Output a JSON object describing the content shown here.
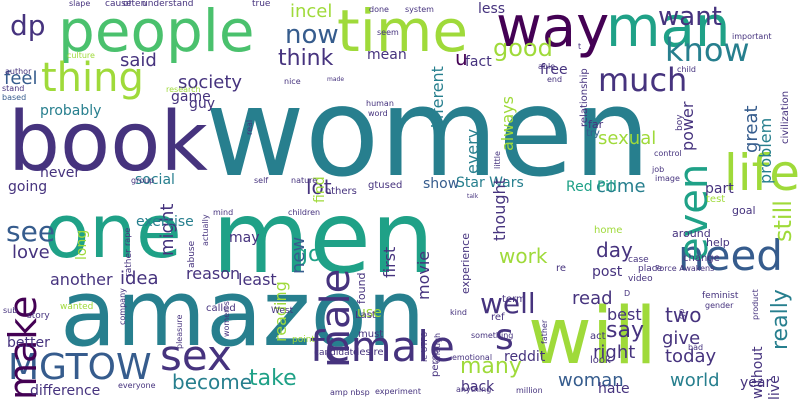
{
  "cloud": {
    "palette": {
      "purple": "#440154",
      "indigo": "#46337e",
      "blue": "#365c8d",
      "teal": "#277f8e",
      "green": "#1fa187",
      "lgreen": "#4ac16d",
      "lime": "#9fda3a",
      "yellow": "#fde725"
    },
    "words": [
      {
        "text": "women",
        "color": "teal",
        "rot": 0
      },
      {
        "text": "one",
        "color": "green",
        "rot": 0
      },
      {
        "text": "men",
        "color": "green",
        "rot": 0
      },
      {
        "text": "amazon",
        "color": "teal",
        "rot": 0
      },
      {
        "text": "book",
        "color": "indigo",
        "rot": 0
      },
      {
        "text": "will",
        "color": "lime",
        "rot": 0
      },
      {
        "text": "people",
        "color": "lgreen",
        "rot": 0
      },
      {
        "text": "way",
        "color": "purple",
        "rot": 0
      },
      {
        "text": "man",
        "color": "green",
        "rot": 0
      },
      {
        "text": "time",
        "color": "lime",
        "rot": 0
      },
      {
        "text": "life",
        "color": "lime",
        "rot": 0
      },
      {
        "text": "thing",
        "color": "lime",
        "rot": 0
      },
      {
        "text": "female",
        "color": "indigo",
        "rot": 0
      },
      {
        "text": "MGTOW",
        "color": "blue",
        "rot": 0
      },
      {
        "text": "sex",
        "color": "indigo",
        "rot": 0
      },
      {
        "text": "need",
        "color": "blue",
        "rot": 0
      },
      {
        "text": "make",
        "color": "purple",
        "rot": 270
      },
      {
        "text": "male",
        "color": "indigo",
        "rot": 270
      },
      {
        "text": "even",
        "color": "green",
        "rot": 270
      },
      {
        "text": "much",
        "color": "indigo",
        "rot": 0
      },
      {
        "text": "know",
        "color": "teal",
        "rot": 0
      },
      {
        "text": "s",
        "color": "indigo",
        "rot": 0
      },
      {
        "text": "dp",
        "color": "indigo",
        "rot": 0
      },
      {
        "text": "want",
        "color": "indigo",
        "rot": 0
      },
      {
        "text": "now",
        "color": "blue",
        "rot": 0
      },
      {
        "text": "think",
        "color": "indigo",
        "rot": 0
      },
      {
        "text": "good",
        "color": "lime",
        "rot": 0
      },
      {
        "text": "well",
        "color": "indigo",
        "rot": 0
      },
      {
        "text": "take",
        "color": "green",
        "rot": 0
      },
      {
        "text": "become",
        "color": "teal",
        "rot": 0
      },
      {
        "text": "see",
        "color": "blue",
        "rot": 0
      },
      {
        "text": "many",
        "color": "lime",
        "rot": 0
      },
      {
        "text": "still",
        "color": "lime",
        "rot": 270
      },
      {
        "text": "really",
        "color": "teal",
        "rot": 270
      },
      {
        "text": "say",
        "color": "indigo",
        "rot": 0
      },
      {
        "text": "day",
        "color": "indigo",
        "rot": 0
      },
      {
        "text": "work",
        "color": "lime",
        "rot": 0
      },
      {
        "text": "come",
        "color": "teal",
        "rot": 0
      },
      {
        "text": "society",
        "color": "indigo",
        "rot": 0
      },
      {
        "text": "feel",
        "color": "blue",
        "rot": 0
      },
      {
        "text": "said",
        "color": "indigo",
        "rot": 0
      },
      {
        "text": "u",
        "color": "purple",
        "rot": 0
      },
      {
        "text": "go",
        "color": "green",
        "rot": 0
      },
      {
        "text": "lot",
        "color": "indigo",
        "rot": 0
      },
      {
        "text": "might",
        "color": "indigo",
        "rot": 270
      },
      {
        "text": "new",
        "color": "blue",
        "rot": 270
      },
      {
        "text": "two",
        "color": "indigo",
        "rot": 0
      },
      {
        "text": "give",
        "color": "indigo",
        "rot": 0
      },
      {
        "text": "right",
        "color": "indigo",
        "rot": 0
      },
      {
        "text": "woman",
        "color": "blue",
        "rot": 0
      },
      {
        "text": "world",
        "color": "teal",
        "rot": 0
      },
      {
        "text": "today",
        "color": "indigo",
        "rot": 0
      },
      {
        "text": "read",
        "color": "indigo",
        "rot": 0
      },
      {
        "text": "best",
        "color": "indigo",
        "rot": 0
      },
      {
        "text": "sexual",
        "color": "lime",
        "rot": 0
      },
      {
        "text": "incel",
        "color": "lime",
        "rot": 0
      },
      {
        "text": "love",
        "color": "indigo",
        "rot": 0
      },
      {
        "text": "idea",
        "color": "indigo",
        "rot": 0
      },
      {
        "text": "reason",
        "color": "indigo",
        "rot": 0
      },
      {
        "text": "least",
        "color": "indigo",
        "rot": 0
      },
      {
        "text": "another",
        "color": "indigo",
        "rot": 0
      },
      {
        "text": "Star Wars",
        "color": "teal",
        "rot": 0
      },
      {
        "text": "Red Pill",
        "color": "green",
        "rot": 0
      },
      {
        "text": "show",
        "color": "blue",
        "rot": 0
      },
      {
        "text": "post",
        "color": "indigo",
        "rot": 0
      },
      {
        "text": "part",
        "color": "indigo",
        "rot": 0
      },
      {
        "text": "great",
        "color": "blue",
        "rot": 270
      },
      {
        "text": "problem",
        "color": "teal",
        "rot": 270
      },
      {
        "text": "power",
        "color": "indigo",
        "rot": 270
      },
      {
        "text": "fact",
        "color": "indigo",
        "rot": 0
      },
      {
        "text": "free",
        "color": "indigo",
        "rot": 0
      },
      {
        "text": "less",
        "color": "indigo",
        "rot": 0
      },
      {
        "text": "mean",
        "color": "indigo",
        "rot": 0
      },
      {
        "text": "game",
        "color": "indigo",
        "rot": 0
      },
      {
        "text": "guy",
        "color": "indigo",
        "rot": 0
      },
      {
        "text": "probably",
        "color": "teal",
        "rot": 0
      },
      {
        "text": "going",
        "color": "indigo",
        "rot": 0
      },
      {
        "text": "never",
        "color": "indigo",
        "rot": 0
      },
      {
        "text": "social",
        "color": "teal",
        "rot": 0
      },
      {
        "text": "exercise",
        "color": "teal",
        "rot": 0
      },
      {
        "text": "may",
        "color": "indigo",
        "rot": 0
      },
      {
        "text": "better",
        "color": "indigo",
        "rot": 0
      },
      {
        "text": "difference",
        "color": "indigo",
        "rot": 0
      },
      {
        "text": "hate",
        "color": "indigo",
        "rot": 0
      },
      {
        "text": "back",
        "color": "indigo",
        "rot": 0
      },
      {
        "text": "year",
        "color": "indigo",
        "rot": 0
      },
      {
        "text": "different",
        "color": "teal",
        "rot": 270
      },
      {
        "text": "every",
        "color": "teal",
        "rot": 270
      },
      {
        "text": "always",
        "color": "lime",
        "rot": 270
      },
      {
        "text": "first",
        "color": "indigo",
        "rot": 270
      },
      {
        "text": "movie",
        "color": "indigo",
        "rot": 270
      },
      {
        "text": "thought",
        "color": "indigo",
        "rot": 270
      },
      {
        "text": "reading",
        "color": "lime",
        "rot": 270
      },
      {
        "text": "long",
        "color": "lime",
        "rot": 270
      },
      {
        "text": "find",
        "color": "lime",
        "rot": 270
      },
      {
        "text": "use",
        "color": "lime",
        "rot": 0
      },
      {
        "text": "reddit",
        "color": "indigo",
        "rot": 0
      },
      {
        "text": "without",
        "color": "indigo",
        "rot": 270
      },
      {
        "text": "live",
        "color": "indigo",
        "rot": 270
      },
      {
        "text": "slape",
        "color": "indigo",
        "rot": 0
      },
      {
        "text": "cause",
        "color": "indigo",
        "rot": 0
      },
      {
        "text": "often",
        "color": "indigo",
        "rot": 0
      },
      {
        "text": "understand",
        "color": "indigo",
        "rot": 0
      },
      {
        "text": "true",
        "color": "indigo",
        "rot": 0
      },
      {
        "text": "done",
        "color": "indigo",
        "rot": 0
      },
      {
        "text": "system",
        "color": "indigo",
        "rot": 0
      },
      {
        "text": "seem",
        "color": "indigo",
        "rot": 0
      },
      {
        "text": "important",
        "color": "indigo",
        "rot": 0
      },
      {
        "text": "author",
        "color": "indigo",
        "rot": 0
      },
      {
        "text": "culture",
        "color": "lime",
        "rot": 0
      },
      {
        "text": "stand",
        "color": "indigo",
        "rot": 0
      },
      {
        "text": "based",
        "color": "blue",
        "rot": 0
      },
      {
        "text": "research",
        "color": "lime",
        "rot": 0
      },
      {
        "text": "nice",
        "color": "indigo",
        "rot": 0
      },
      {
        "text": "word",
        "color": "indigo",
        "rot": 0
      },
      {
        "text": "human",
        "color": "indigo",
        "rot": 0
      },
      {
        "text": "able",
        "color": "indigo",
        "rot": 0
      },
      {
        "text": "end",
        "color": "indigo",
        "rot": 0
      },
      {
        "text": "civilization",
        "color": "indigo",
        "rot": 270
      },
      {
        "text": "child",
        "color": "indigo",
        "rot": 0
      },
      {
        "text": "relationship",
        "color": "indigo",
        "rot": 270
      },
      {
        "text": "far",
        "color": "indigo",
        "rot": 0
      },
      {
        "text": "try",
        "color": "blue",
        "rot": 0
      },
      {
        "text": "control",
        "color": "indigo",
        "rot": 0
      },
      {
        "text": "job",
        "color": "indigo",
        "rot": 0
      },
      {
        "text": "image",
        "color": "indigo",
        "rot": 0
      },
      {
        "text": "test",
        "color": "lime",
        "rot": 0
      },
      {
        "text": "goal",
        "color": "indigo",
        "rot": 0
      },
      {
        "text": "around",
        "color": "indigo",
        "rot": 0
      },
      {
        "text": "help",
        "color": "indigo",
        "rot": 0
      },
      {
        "text": "home",
        "color": "lime",
        "rot": 0
      },
      {
        "text": "change",
        "color": "indigo",
        "rot": 0
      },
      {
        "text": "video",
        "color": "indigo",
        "rot": 0
      },
      {
        "text": "place",
        "color": "indigo",
        "rot": 0
      },
      {
        "text": "case",
        "color": "indigo",
        "rot": 0
      },
      {
        "text": "Force Awakens",
        "color": "indigo",
        "rot": 0
      },
      {
        "text": "feminist",
        "color": "indigo",
        "rot": 0
      },
      {
        "text": "gender",
        "color": "indigo",
        "rot": 0
      },
      {
        "text": "product",
        "color": "indigo",
        "rot": 270
      },
      {
        "text": "act",
        "color": "indigo",
        "rot": 0
      },
      {
        "text": "bad",
        "color": "indigo",
        "rot": 0
      },
      {
        "text": "look",
        "color": "indigo",
        "rot": 0
      },
      {
        "text": "kind",
        "color": "indigo",
        "rot": 0
      },
      {
        "text": "father",
        "color": "indigo",
        "rot": 270
      },
      {
        "text": "something",
        "color": "indigo",
        "rot": 0
      },
      {
        "text": "enough",
        "color": "indigo",
        "rot": 270
      },
      {
        "text": "emotional",
        "color": "indigo",
        "rot": 0
      },
      {
        "text": "million",
        "color": "indigo",
        "rot": 0
      },
      {
        "text": "anything",
        "color": "indigo",
        "rot": 0
      },
      {
        "text": "experiment",
        "color": "indigo",
        "rot": 0
      },
      {
        "text": "amp nbsp",
        "color": "indigo",
        "rot": 0
      },
      {
        "text": "person",
        "color": "indigo",
        "rot": 270
      },
      {
        "text": "must",
        "color": "indigo",
        "rot": 0
      },
      {
        "text": "desire",
        "color": "indigo",
        "rot": 0
      },
      {
        "text": "Last",
        "color": "indigo",
        "rot": 0
      },
      {
        "text": "re",
        "color": "indigo",
        "rot": 0
      },
      {
        "text": "term",
        "color": "indigo",
        "rot": 0
      },
      {
        "text": "ref",
        "color": "indigo",
        "rot": 0
      },
      {
        "text": "experience",
        "color": "indigo",
        "rot": 270
      },
      {
        "text": "found",
        "color": "indigo",
        "rot": 270
      },
      {
        "text": "children",
        "color": "indigo",
        "rot": 0
      },
      {
        "text": "nature",
        "color": "indigo",
        "rot": 0
      },
      {
        "text": "others",
        "color": "indigo",
        "rot": 0
      },
      {
        "text": "gtused",
        "color": "indigo",
        "rot": 0
      },
      {
        "text": "self",
        "color": "indigo",
        "rot": 0
      },
      {
        "text": "mind",
        "color": "indigo",
        "rot": 0
      },
      {
        "text": "actually",
        "color": "indigo",
        "rot": 270
      },
      {
        "text": "abuse",
        "color": "indigo",
        "rot": 270
      },
      {
        "text": "called",
        "color": "indigo",
        "rot": 0
      },
      {
        "text": "company",
        "color": "indigo",
        "rot": 270
      },
      {
        "text": "rather",
        "color": "indigo",
        "rot": 270
      },
      {
        "text": "rape",
        "color": "indigo",
        "rot": 270
      },
      {
        "text": "group",
        "color": "indigo",
        "rot": 0
      },
      {
        "text": "story",
        "color": "indigo",
        "rot": 0
      },
      {
        "text": "wanted",
        "color": "lime",
        "rot": 0
      },
      {
        "text": "women s",
        "color": "indigo",
        "rot": 270
      },
      {
        "text": "candidate",
        "color": "indigo",
        "rot": 0
      },
      {
        "text": "point",
        "color": "lime",
        "rot": 0
      },
      {
        "text": "West",
        "color": "indigo",
        "rot": 0
      },
      {
        "text": "pleasure",
        "color": "indigo",
        "rot": 270
      },
      {
        "text": "everyone",
        "color": "indigo",
        "rot": 0
      },
      {
        "text": "ie UTF8",
        "color": "indigo",
        "rot": 270
      },
      {
        "text": "sub",
        "color": "indigo",
        "rot": 0
      },
      {
        "text": "real",
        "color": "indigo",
        "rot": 270
      },
      {
        "text": "made",
        "color": "indigo",
        "rot": 0
      },
      {
        "text": "D",
        "color": "indigo",
        "rot": 0
      },
      {
        "text": "t",
        "color": "indigo",
        "rot": 0
      },
      {
        "text": "talk",
        "color": "indigo",
        "rot": 0
      },
      {
        "text": "boy",
        "color": "indigo",
        "rot": 270
      },
      {
        "text": "little",
        "color": "indigo",
        "rot": 270
      },
      {
        "text": "gp",
        "color": "indigo",
        "rot": 270
      }
    ]
  }
}
